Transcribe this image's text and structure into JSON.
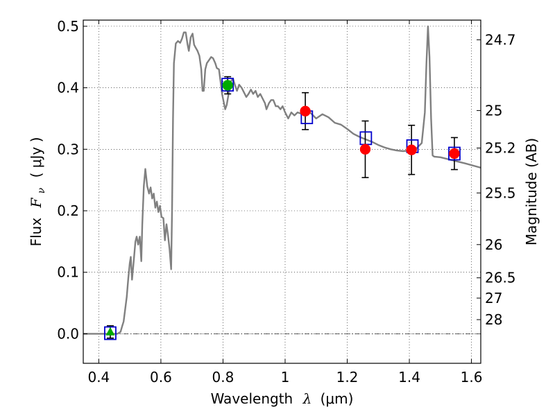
{
  "chart_data": {
    "type": "scatter",
    "xlabel_text": "Wavelength",
    "xlabel_symbol": "λ",
    "xlabel_unit": "(μm)",
    "ylabel_text": "Flux",
    "ylabel_symbol": "F",
    "ylabel_sub": "ν",
    "ylabel_unit": "( μJy )",
    "y2label": "Magnitude (AB)",
    "xlim": [
      0.35,
      1.63
    ],
    "ylim": [
      -0.048,
      0.51
    ],
    "grid": true,
    "x_ticks": [
      0.4,
      0.6,
      0.8,
      1.0,
      1.2,
      1.4,
      1.6
    ],
    "x_tick_labels": [
      "0.4",
      "0.6",
      "0.8",
      "1",
      "1.2",
      "1.4",
      "1.6"
    ],
    "y_ticks": [
      0.0,
      0.1,
      0.2,
      0.3,
      0.4,
      0.5
    ],
    "y_tick_labels": [
      "0.0",
      "0.1",
      "0.2",
      "0.3",
      "0.4",
      "0.5"
    ],
    "y2_ticks": [
      {
        "label": "24.7",
        "flux": 0.478
      },
      {
        "label": "25",
        "flux": 0.363
      },
      {
        "label": "25.2",
        "flux": 0.302
      },
      {
        "label": "25.5",
        "flux": 0.229
      },
      {
        "label": "26",
        "flux": 0.145
      },
      {
        "label": "26.5",
        "flux": 0.091
      },
      {
        "label": "27",
        "flux": 0.058
      },
      {
        "label": "28",
        "flux": 0.023
      }
    ],
    "series": [
      {
        "name": "model SED",
        "kind": "line",
        "color": "#808080",
        "points": [
          [
            0.35,
            0.0
          ],
          [
            0.46,
            0.0
          ],
          [
            0.47,
            0.003
          ],
          [
            0.475,
            0.012
          ],
          [
            0.48,
            0.02
          ],
          [
            0.49,
            0.06
          ],
          [
            0.495,
            0.09
          ],
          [
            0.5,
            0.115
          ],
          [
            0.503,
            0.125
          ],
          [
            0.507,
            0.088
          ],
          [
            0.512,
            0.115
          ],
          [
            0.518,
            0.15
          ],
          [
            0.522,
            0.158
          ],
          [
            0.527,
            0.145
          ],
          [
            0.532,
            0.158
          ],
          [
            0.537,
            0.118
          ],
          [
            0.54,
            0.178
          ],
          [
            0.545,
            0.24
          ],
          [
            0.55,
            0.268
          ],
          [
            0.556,
            0.24
          ],
          [
            0.562,
            0.228
          ],
          [
            0.567,
            0.238
          ],
          [
            0.572,
            0.22
          ],
          [
            0.577,
            0.228
          ],
          [
            0.582,
            0.205
          ],
          [
            0.587,
            0.215
          ],
          [
            0.592,
            0.198
          ],
          [
            0.597,
            0.208
          ],
          [
            0.602,
            0.19
          ],
          [
            0.608,
            0.188
          ],
          [
            0.613,
            0.152
          ],
          [
            0.618,
            0.178
          ],
          [
            0.623,
            0.16
          ],
          [
            0.628,
            0.138
          ],
          [
            0.633,
            0.105
          ],
          [
            0.636,
            0.2
          ],
          [
            0.639,
            0.35
          ],
          [
            0.642,
            0.44
          ],
          [
            0.648,
            0.472
          ],
          [
            0.655,
            0.476
          ],
          [
            0.662,
            0.473
          ],
          [
            0.668,
            0.48
          ],
          [
            0.674,
            0.49
          ],
          [
            0.68,
            0.49
          ],
          [
            0.686,
            0.47
          ],
          [
            0.69,
            0.46
          ],
          [
            0.696,
            0.482
          ],
          [
            0.702,
            0.488
          ],
          [
            0.707,
            0.47
          ],
          [
            0.712,
            0.465
          ],
          [
            0.718,
            0.46
          ],
          [
            0.724,
            0.452
          ],
          [
            0.73,
            0.43
          ],
          [
            0.734,
            0.395
          ],
          [
            0.738,
            0.395
          ],
          [
            0.743,
            0.43
          ],
          [
            0.748,
            0.44
          ],
          [
            0.755,
            0.445
          ],
          [
            0.762,
            0.45
          ],
          [
            0.768,
            0.448
          ],
          [
            0.775,
            0.44
          ],
          [
            0.78,
            0.432
          ],
          [
            0.787,
            0.43
          ],
          [
            0.792,
            0.41
          ],
          [
            0.797,
            0.39
          ],
          [
            0.803,
            0.375
          ],
          [
            0.807,
            0.365
          ],
          [
            0.812,
            0.372
          ],
          [
            0.818,
            0.39
          ],
          [
            0.825,
            0.41
          ],
          [
            0.832,
            0.415
          ],
          [
            0.838,
            0.405
          ],
          [
            0.845,
            0.395
          ],
          [
            0.852,
            0.405
          ],
          [
            0.86,
            0.4
          ],
          [
            0.868,
            0.392
          ],
          [
            0.875,
            0.385
          ],
          [
            0.882,
            0.39
          ],
          [
            0.89,
            0.397
          ],
          [
            0.897,
            0.39
          ],
          [
            0.905,
            0.395
          ],
          [
            0.912,
            0.385
          ],
          [
            0.92,
            0.39
          ],
          [
            0.928,
            0.382
          ],
          [
            0.935,
            0.375
          ],
          [
            0.94,
            0.365
          ],
          [
            0.948,
            0.375
          ],
          [
            0.955,
            0.38
          ],
          [
            0.962,
            0.38
          ],
          [
            0.97,
            0.37
          ],
          [
            0.977,
            0.37
          ],
          [
            0.985,
            0.365
          ],
          [
            0.992,
            0.37
          ],
          [
            1.0,
            0.36
          ],
          [
            1.01,
            0.35
          ],
          [
            1.02,
            0.36
          ],
          [
            1.03,
            0.355
          ],
          [
            1.04,
            0.36
          ],
          [
            1.05,
            0.358
          ],
          [
            1.06,
            0.36
          ],
          [
            1.07,
            0.365
          ],
          [
            1.08,
            0.36
          ],
          [
            1.09,
            0.355
          ],
          [
            1.1,
            0.35
          ],
          [
            1.12,
            0.357
          ],
          [
            1.14,
            0.352
          ],
          [
            1.16,
            0.343
          ],
          [
            1.18,
            0.34
          ],
          [
            1.2,
            0.333
          ],
          [
            1.22,
            0.325
          ],
          [
            1.24,
            0.32
          ],
          [
            1.26,
            0.316
          ],
          [
            1.28,
            0.312
          ],
          [
            1.3,
            0.307
          ],
          [
            1.32,
            0.303
          ],
          [
            1.34,
            0.3
          ],
          [
            1.36,
            0.298
          ],
          [
            1.38,
            0.297
          ],
          [
            1.4,
            0.298
          ],
          [
            1.42,
            0.3
          ],
          [
            1.44,
            0.31
          ],
          [
            1.45,
            0.36
          ],
          [
            1.455,
            0.44
          ],
          [
            1.46,
            0.5
          ],
          [
            1.465,
            0.45
          ],
          [
            1.47,
            0.35
          ],
          [
            1.475,
            0.29
          ],
          [
            1.48,
            0.288
          ],
          [
            1.5,
            0.287
          ],
          [
            1.54,
            0.282
          ],
          [
            1.58,
            0.277
          ],
          [
            1.63,
            0.27
          ]
        ]
      },
      {
        "name": "model photometry",
        "kind": "square",
        "color": "#0000cc",
        "points": [
          [
            0.437,
            0.001
          ],
          [
            0.815,
            0.405
          ],
          [
            1.07,
            0.352
          ],
          [
            1.26,
            0.318
          ],
          [
            1.41,
            0.305
          ],
          [
            1.545,
            0.293
          ]
        ]
      },
      {
        "name": "observed detections",
        "kind": "circle",
        "color": "#ff0000",
        "points": [
          [
            1.065,
            0.362,
            0.03
          ],
          [
            1.258,
            0.3,
            0.046
          ],
          [
            1.407,
            0.299,
            0.04
          ],
          [
            1.545,
            0.293,
            0.026
          ]
        ]
      },
      {
        "name": "observed green",
        "kind": "circle",
        "color": "#00aa00",
        "points": [
          [
            0.815,
            0.404,
            0.014
          ]
        ]
      },
      {
        "name": "upper limit",
        "kind": "triangle",
        "color": "#00aa00",
        "points": [
          [
            0.437,
            0.003,
            0.01
          ]
        ]
      }
    ]
  }
}
